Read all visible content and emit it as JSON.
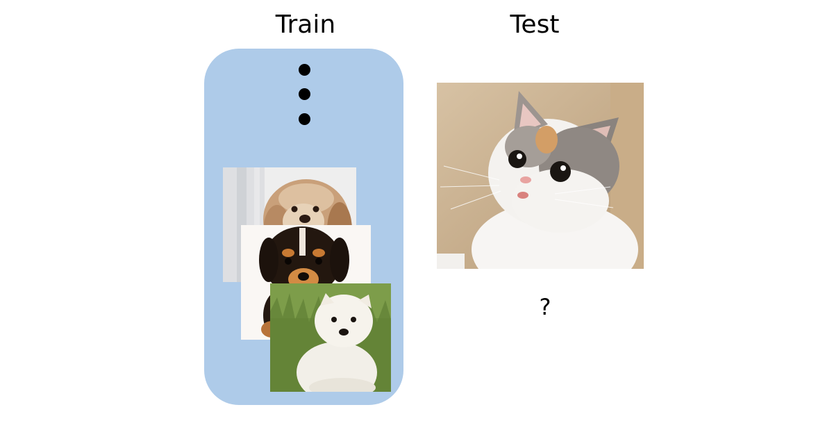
{
  "headings": {
    "train": "Train",
    "test": "Test"
  },
  "test_prediction": "?",
  "train_set": {
    "continuation_marker": "vertical-ellipsis",
    "images": [
      {
        "subject": "dog-fluffy-tan"
      },
      {
        "subject": "puppy-black-tan"
      },
      {
        "subject": "puppy-white-on-grass"
      }
    ]
  },
  "test_image": {
    "subject": "cat-calico"
  },
  "colors": {
    "train_panel": "#aecbe9",
    "background": "#ffffff",
    "text": "#000000"
  }
}
